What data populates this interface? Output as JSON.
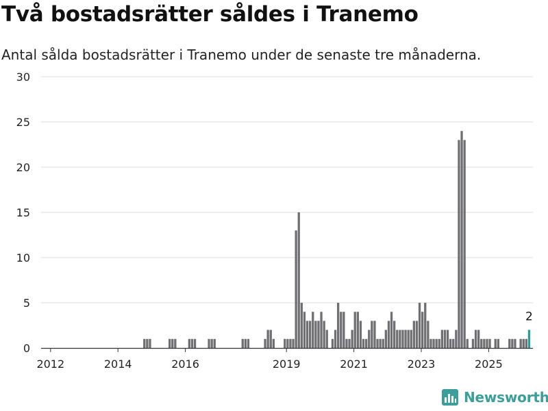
{
  "title": "Två bostadsrätter såldes i Tranemo",
  "subtitle": "Antal sålda bostadsrätter i Tranemo under de senaste tre månaderna.",
  "brand": "Newsworthy",
  "colors": {
    "bar": "#6f6e72",
    "highlight": "#2a9c98",
    "grid": "#dddddd",
    "brand": "#3a9e9a"
  },
  "chart_data": {
    "type": "bar",
    "title": "",
    "xlabel": "",
    "ylabel": "",
    "ylim": [
      0,
      30
    ],
    "yticks": [
      0,
      5,
      10,
      15,
      20,
      25,
      30
    ],
    "xticks": [
      "2012",
      "2014",
      "2016",
      "2019",
      "2021",
      "2023",
      "2025"
    ],
    "grid": true,
    "start": "2011-10",
    "interval": "month",
    "values": [
      0,
      0,
      0,
      0,
      0,
      0,
      0,
      0,
      0,
      0,
      0,
      0,
      0,
      0,
      0,
      0,
      0,
      0,
      0,
      0,
      0,
      0,
      0,
      0,
      0,
      0,
      0,
      0,
      0,
      0,
      0,
      0,
      0,
      0,
      0,
      0,
      1,
      1,
      1,
      0,
      0,
      0,
      0,
      0,
      0,
      1,
      1,
      1,
      0,
      0,
      0,
      0,
      1,
      1,
      1,
      0,
      0,
      0,
      0,
      1,
      1,
      1,
      0,
      0,
      0,
      0,
      0,
      0,
      0,
      0,
      0,
      1,
      1,
      1,
      0,
      0,
      0,
      0,
      0,
      1,
      2,
      2,
      1,
      0,
      0,
      0,
      1,
      1,
      1,
      1,
      13,
      15,
      5,
      4,
      3,
      3,
      4,
      3,
      3,
      4,
      3,
      2,
      0,
      1,
      2,
      5,
      4,
      4,
      1,
      1,
      2,
      4,
      4,
      3,
      1,
      1,
      2,
      3,
      3,
      1,
      1,
      1,
      2,
      3,
      4,
      3,
      2,
      2,
      2,
      2,
      2,
      2,
      3,
      3,
      5,
      4,
      5,
      3,
      1,
      1,
      1,
      1,
      2,
      2,
      2,
      1,
      1,
      2,
      23,
      24,
      23,
      1,
      0,
      1,
      2,
      2,
      1,
      1,
      1,
      1,
      0,
      1,
      1,
      0,
      0,
      0,
      1,
      1,
      1,
      0,
      1,
      1,
      1,
      2
    ],
    "highlight_last": true,
    "annotation": "2"
  }
}
